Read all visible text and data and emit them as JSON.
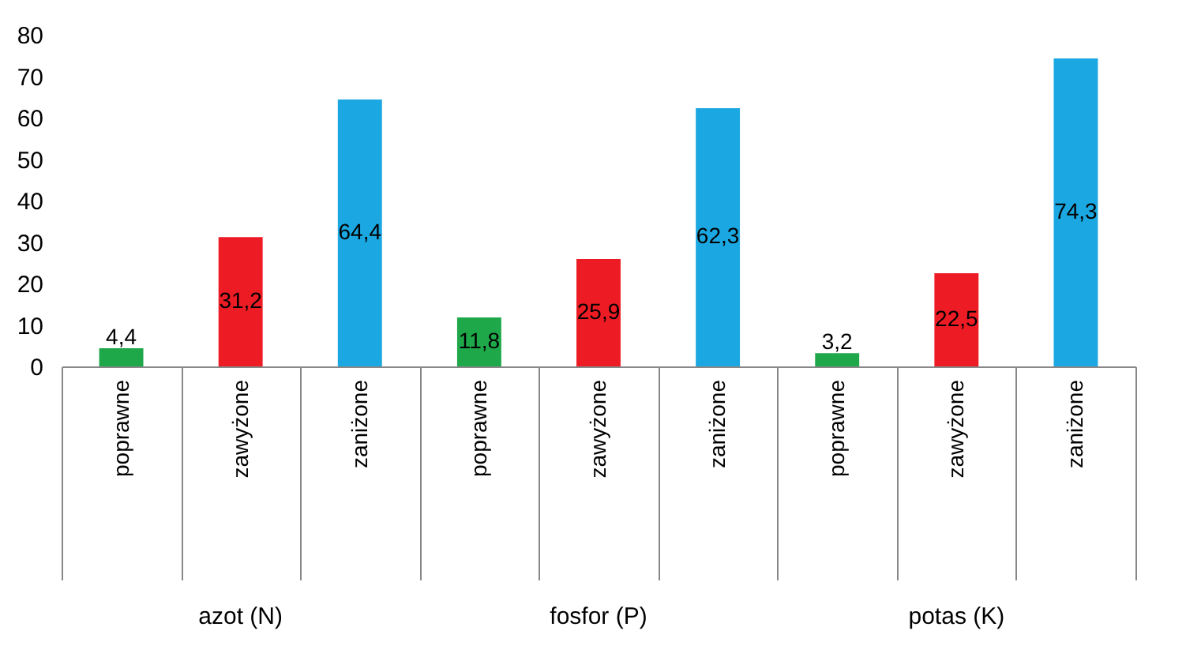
{
  "chart_data": {
    "type": "bar",
    "categories": [
      "poprawne",
      "zawyżone",
      "zaniżone",
      "poprawne",
      "zawyżone",
      "zaniżone",
      "poprawne",
      "zawyżone",
      "zaniżone"
    ],
    "values": [
      4.4,
      31.2,
      64.4,
      11.8,
      25.9,
      62.3,
      3.2,
      22.5,
      74.3
    ],
    "colors": [
      "#1fa84a",
      "#ed1c24",
      "#1ba7e1",
      "#1fa84a",
      "#ed1c24",
      "#1ba7e1",
      "#1fa84a",
      "#ed1c24",
      "#1ba7e1"
    ],
    "value_labels": [
      "4,4",
      "31,2",
      "64,4",
      "11,8",
      "25,9",
      "62,3",
      "3,2",
      "22,5",
      "74,3"
    ],
    "annotations": [
      "azot (N)",
      "fosfor (P)",
      "potas (K)"
    ],
    "ylim": [
      0,
      80
    ],
    "yticks": [
      0,
      10,
      20,
      30,
      40,
      50,
      60,
      70,
      80
    ],
    "grid": false,
    "legend": false
  }
}
